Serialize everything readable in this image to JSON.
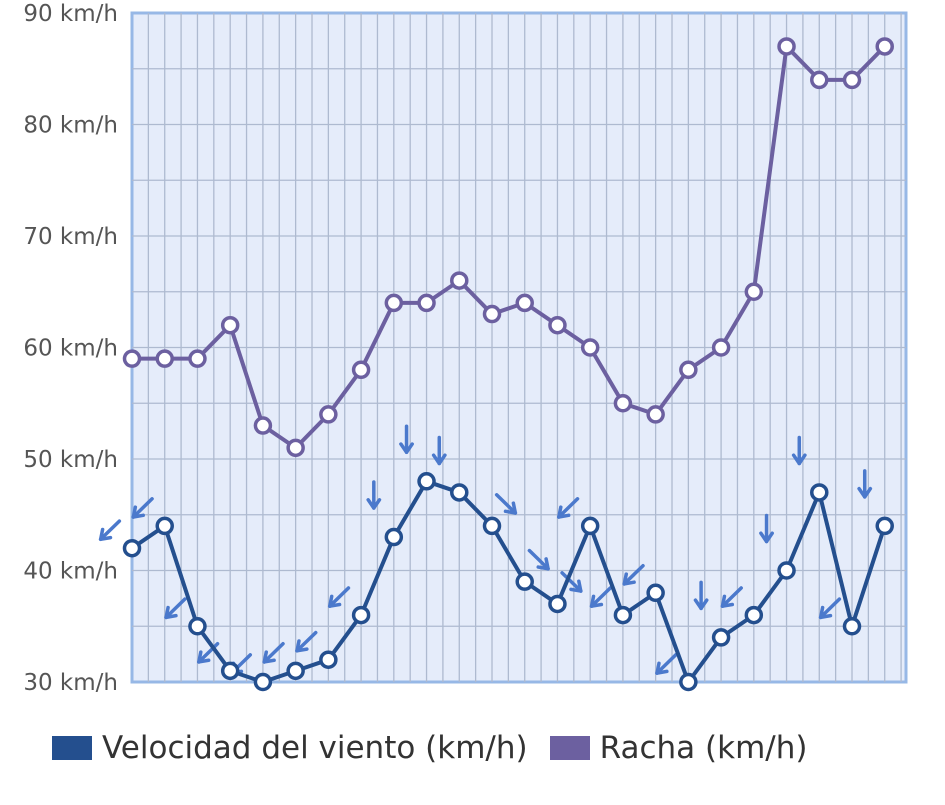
{
  "colors": {
    "plot_bg": "#e5ecfa",
    "plot_border": "#97b8e6",
    "grid": "#aebad0",
    "wind": "#244f8e",
    "gust": "#6c60a0",
    "arrow": "#4b79cc",
    "axis_text": "#555555"
  },
  "chart_data": {
    "type": "line",
    "unit": "km/h",
    "ylim": [
      30,
      90
    ],
    "yticks": [
      "30 km/h",
      "40 km/h",
      "50 km/h",
      "60 km/h",
      "70 km/h",
      "80 km/h",
      "90 km/h"
    ],
    "grid": true,
    "legend_position": "bottom",
    "series": [
      {
        "name": "Velocidad del viento (km/h)",
        "color": "#244f8e",
        "values": [
          42,
          44,
          35,
          31,
          30,
          31,
          32,
          36,
          43,
          48,
          47,
          44,
          39,
          37,
          44,
          36,
          38,
          30,
          34,
          36,
          40,
          47,
          35,
          44
        ],
        "wind_direction_arrows": [
          "NE",
          "NE",
          "NE",
          "NE",
          "NE",
          "NE",
          "NE",
          "NE",
          "N",
          "N",
          "N",
          "NW",
          "NW",
          "NW",
          "NE",
          "NE",
          "NE",
          "NE",
          "N",
          "NE",
          "N",
          "N",
          "NE",
          "N"
        ]
      },
      {
        "name": "Racha (km/h)",
        "color": "#6c60a0",
        "values": [
          59,
          59,
          59,
          62,
          53,
          51,
          54,
          58,
          64,
          64,
          66,
          63,
          64,
          62,
          60,
          55,
          54,
          58,
          60,
          65,
          87,
          84,
          84,
          87
        ]
      }
    ]
  },
  "legend": {
    "wind_label": "Velocidad del viento (km/h)",
    "gust_label": "Racha (km/h)"
  }
}
